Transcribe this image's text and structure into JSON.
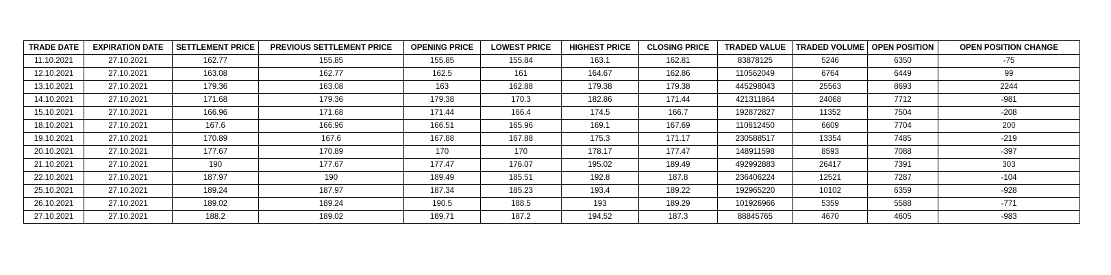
{
  "colors": {
    "background": "#ffffff",
    "border": "#000000",
    "text": "#000000"
  },
  "chart_data": {
    "type": "table",
    "columns": [
      "TRADE DATE",
      "EXPIRATION DATE",
      "SETTLEMENT PRICE",
      "PREVIOUS SETTLEMENT PRICE",
      "OPENING PRICE",
      "LOWEST PRICE",
      "HIGHEST PRICE",
      "CLOSING PRICE",
      "TRADED VALUE",
      "TRADED VOLUME",
      "OPEN POSITION",
      "OPEN POSITION CHANGE"
    ],
    "rows": [
      [
        "11.10.2021",
        "27.10.2021",
        "162.77",
        "155.85",
        "155.85",
        "155.84",
        "163.1",
        "162.81",
        "83878125",
        "5246",
        "6350",
        "-75"
      ],
      [
        "12.10.2021",
        "27.10.2021",
        "163.08",
        "162.77",
        "162.5",
        "161",
        "164.67",
        "162.86",
        "110562049",
        "6764",
        "6449",
        "99"
      ],
      [
        "13.10.2021",
        "27.10.2021",
        "179.36",
        "163.08",
        "163",
        "162.88",
        "179.38",
        "179.38",
        "445298043",
        "25563",
        "8693",
        "2244"
      ],
      [
        "14.10.2021",
        "27.10.2021",
        "171.68",
        "179.36",
        "179.38",
        "170.3",
        "182.86",
        "171.44",
        "421311864",
        "24068",
        "7712",
        "-981"
      ],
      [
        "15.10.2021",
        "27.10.2021",
        "166.96",
        "171.68",
        "171.44",
        "166.4",
        "174.5",
        "166.7",
        "192872827",
        "11352",
        "7504",
        "-208"
      ],
      [
        "18.10.2021",
        "27.10.2021",
        "167.6",
        "166.96",
        "166.51",
        "165.96",
        "169.1",
        "167.69",
        "110612450",
        "6609",
        "7704",
        "200"
      ],
      [
        "19.10.2021",
        "27.10.2021",
        "170.89",
        "167.6",
        "167.88",
        "167.88",
        "175.3",
        "171.17",
        "230588517",
        "13354",
        "7485",
        "-219"
      ],
      [
        "20.10.2021",
        "27.10.2021",
        "177.67",
        "170.89",
        "170",
        "170",
        "178.17",
        "177.47",
        "148911598",
        "8593",
        "7088",
        "-397"
      ],
      [
        "21.10.2021",
        "27.10.2021",
        "190",
        "177.67",
        "177.47",
        "176.07",
        "195.02",
        "189.49",
        "492992883",
        "26417",
        "7391",
        "303"
      ],
      [
        "22.10.2021",
        "27.10.2021",
        "187.97",
        "190",
        "189.49",
        "185.51",
        "192.8",
        "187.8",
        "236406224",
        "12521",
        "7287",
        "-104"
      ],
      [
        "25.10.2021",
        "27.10.2021",
        "189.24",
        "187.97",
        "187.34",
        "185.23",
        "193.4",
        "189.22",
        "192965220",
        "10102",
        "6359",
        "-928"
      ],
      [
        "26.10.2021",
        "27.10.2021",
        "189.02",
        "189.24",
        "190.5",
        "188.5",
        "193",
        "189.29",
        "101926966",
        "5359",
        "5588",
        "-771"
      ],
      [
        "27.10.2021",
        "27.10.2021",
        "188.2",
        "189.02",
        "189.71",
        "187.2",
        "194.52",
        "187.3",
        "88845765",
        "4670",
        "4605",
        "-983"
      ]
    ]
  }
}
